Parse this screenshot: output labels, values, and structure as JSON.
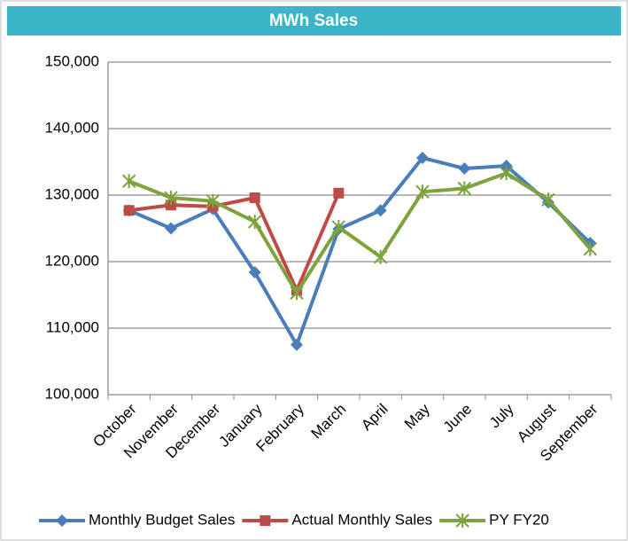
{
  "chart_data": {
    "type": "line",
    "title": "MWh Sales",
    "categories": [
      "October",
      "November",
      "December",
      "January",
      "February",
      "March",
      "April",
      "May",
      "June",
      "July",
      "August",
      "September"
    ],
    "series": [
      {
        "name": "Monthly Budget Sales",
        "color": "#4a7ebb",
        "marker": "diamond",
        "values": [
          127700,
          125000,
          127900,
          118400,
          107500,
          124900,
          127700,
          135600,
          134000,
          134400,
          128900,
          122800
        ]
      },
      {
        "name": "Actual Monthly Sales",
        "color": "#be4b48",
        "marker": "square",
        "values": [
          127700,
          128500,
          128300,
          129600,
          115700,
          130300,
          null,
          null,
          null,
          null,
          null,
          null
        ]
      },
      {
        "name": "PY FY20",
        "color": "#7da33c",
        "marker": "asterisk",
        "values": [
          132100,
          129600,
          129100,
          126000,
          115300,
          125200,
          120700,
          130500,
          131000,
          133300,
          129300,
          121900
        ]
      }
    ],
    "ylim": [
      100000,
      150000
    ],
    "yticks": [
      {
        "value": 100000,
        "label": "100,000"
      },
      {
        "value": 110000,
        "label": "110,000"
      },
      {
        "value": 120000,
        "label": "120,000"
      },
      {
        "value": 130000,
        "label": "130,000"
      },
      {
        "value": 140000,
        "label": "140,000"
      },
      {
        "value": 150000,
        "label": "150,000"
      }
    ],
    "grid": true,
    "legend": "bottom"
  }
}
